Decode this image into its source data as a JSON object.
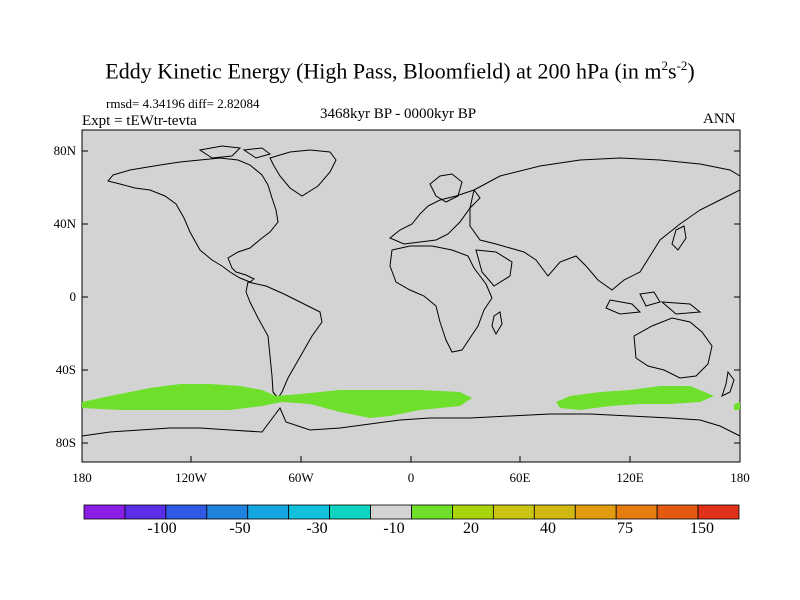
{
  "title": {
    "text": "Eddy Kinetic Energy (High Pass, Bloomfield) at 200 hPa (in m",
    "sup1": "2",
    "mid": "s",
    "sup2": "-2",
    "close": ")"
  },
  "stats": "rmsd= 4.34196 diff= 2.82084",
  "experiment": "Expt = tEWtr-tevta",
  "period": "3468kyr BP - 0000kyr BP",
  "season": "ANN",
  "map": {
    "land_color": "#d3d3d3",
    "coast_color": "#000000",
    "lat_labels": [
      "80N",
      "40N",
      "0",
      "40S",
      "80S"
    ],
    "lon_labels": [
      "180",
      "120W",
      "60W",
      "0",
      "60E",
      "120E",
      "180"
    ],
    "anomaly_color": "#6ee02c"
  },
  "colorbar": {
    "colors": [
      "#8a1ee6",
      "#5a2ee8",
      "#2e5ae6",
      "#1e82de",
      "#13a6e0",
      "#13c0dc",
      "#0fd6c2",
      "#d3d3d3",
      "#6ee02c",
      "#a8d20c",
      "#cac612",
      "#d2b812",
      "#e09b0e",
      "#e67c0e",
      "#e45a10",
      "#e0321a"
    ],
    "labels": [
      "-100",
      "-50",
      "-30",
      "-10",
      "20",
      "40",
      "75",
      "150"
    ]
  }
}
